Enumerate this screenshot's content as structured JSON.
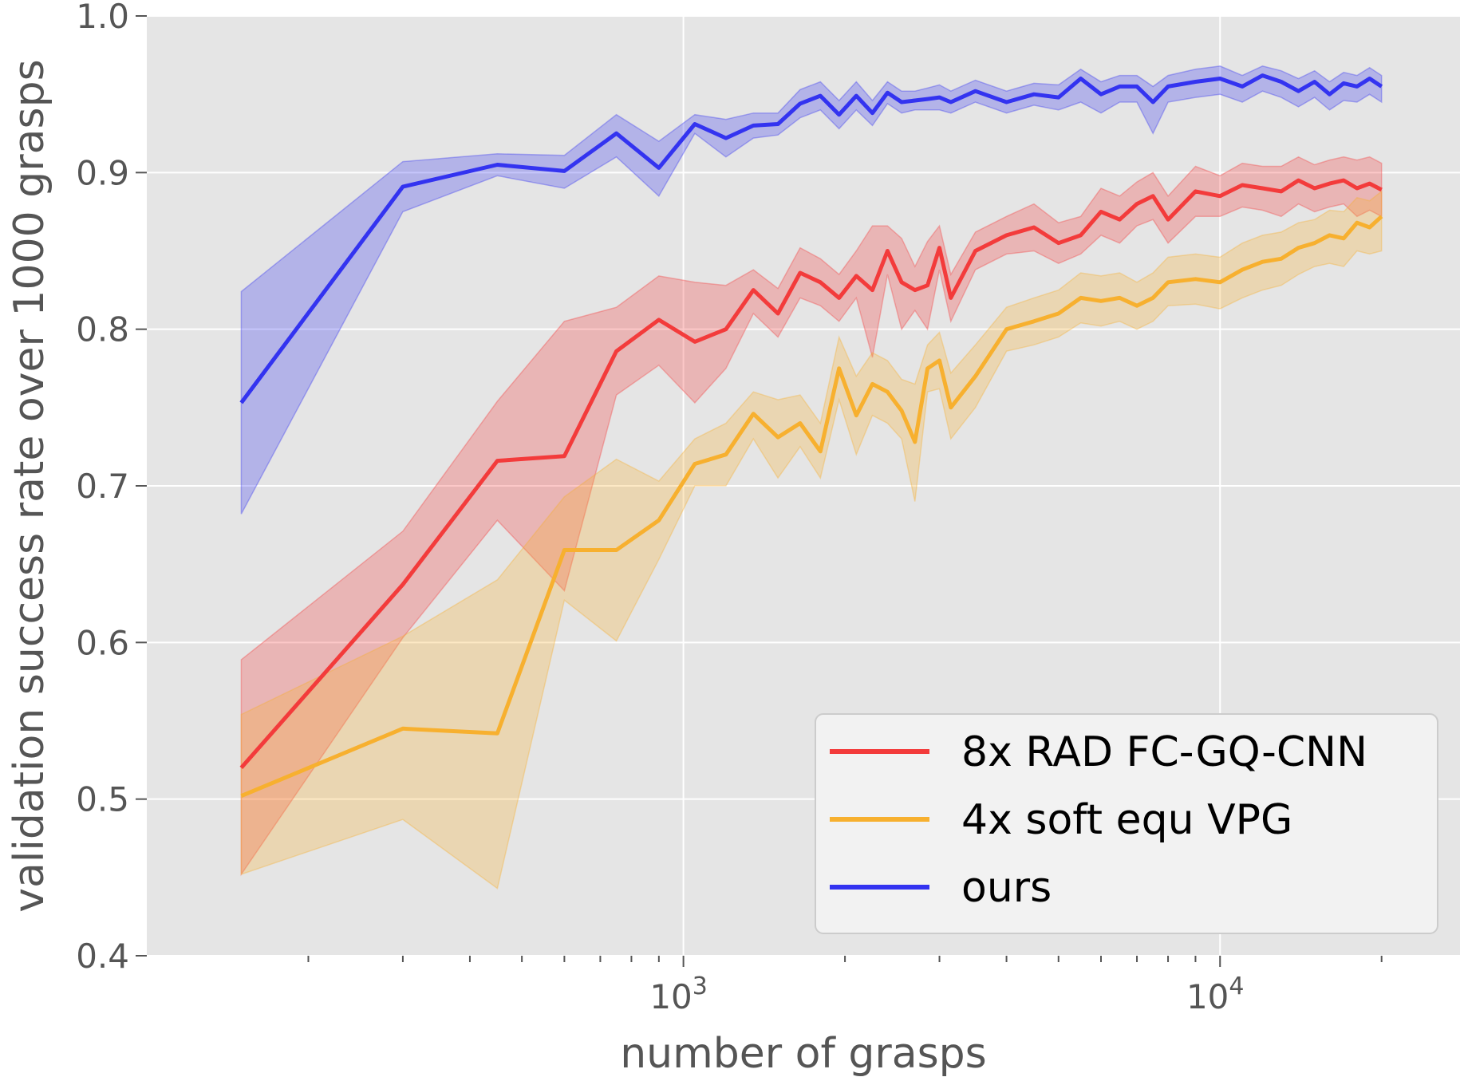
{
  "chart_data": {
    "type": "line",
    "xscale": "log",
    "xlabel": "number of grasps",
    "ylabel": "validation success rate over 1000 grasps",
    "xlim": [
      100,
      28000
    ],
    "ylim": [
      0.4,
      1.0
    ],
    "yticks": [
      {
        "value": 0.4,
        "label": "0.4"
      },
      {
        "value": 0.5,
        "label": "0.5"
      },
      {
        "value": 0.6,
        "label": "0.6"
      },
      {
        "value": 0.7,
        "label": "0.7"
      },
      {
        "value": 0.8,
        "label": "0.8"
      },
      {
        "value": 0.9,
        "label": "0.9"
      },
      {
        "value": 1.0,
        "label": "1.0"
      }
    ],
    "xticks": [
      {
        "value": 1000,
        "base": "10",
        "exp": "3"
      },
      {
        "value": 10000,
        "base": "10",
        "exp": "4"
      }
    ],
    "grid": true,
    "legend_position": "lower-right",
    "colors": {
      "plot_bg": "#e5e5e5",
      "grid": "#ffffff",
      "legend_bg": "#f2f2f2",
      "legend_border": "#cccccc"
    },
    "series": [
      {
        "name": "8x RAD FC-GQ-CNN",
        "color": "#f33b3b",
        "x": [
          150,
          300,
          450,
          600,
          750,
          900,
          1050,
          1200,
          1350,
          1500,
          1650,
          1800,
          1950,
          2100,
          2250,
          2400,
          2550,
          2700,
          2850,
          3000,
          3150,
          3500,
          4000,
          4500,
          5000,
          5500,
          6000,
          6500,
          7000,
          7500,
          8000,
          9000,
          10000,
          11000,
          12000,
          13000,
          14000,
          15000,
          16000,
          17000,
          18000,
          19000,
          20000
        ],
        "y": [
          0.52,
          0.637,
          0.716,
          0.719,
          0.786,
          0.806,
          0.792,
          0.8,
          0.825,
          0.81,
          0.836,
          0.83,
          0.82,
          0.834,
          0.825,
          0.85,
          0.83,
          0.825,
          0.828,
          0.852,
          0.82,
          0.85,
          0.86,
          0.865,
          0.855,
          0.86,
          0.875,
          0.87,
          0.88,
          0.885,
          0.87,
          0.888,
          0.885,
          0.892,
          0.89,
          0.888,
          0.895,
          0.89,
          0.893,
          0.895,
          0.89,
          0.893,
          0.889
        ],
        "lower": [
          0.452,
          0.603,
          0.678,
          0.633,
          0.758,
          0.777,
          0.753,
          0.775,
          0.81,
          0.795,
          0.82,
          0.815,
          0.805,
          0.82,
          0.782,
          0.835,
          0.8,
          0.812,
          0.8,
          0.838,
          0.805,
          0.838,
          0.848,
          0.85,
          0.842,
          0.848,
          0.86,
          0.855,
          0.866,
          0.87,
          0.855,
          0.872,
          0.872,
          0.878,
          0.876,
          0.872,
          0.88,
          0.875,
          0.878,
          0.88,
          0.872,
          0.876,
          0.872
        ],
        "upper": [
          0.589,
          0.671,
          0.754,
          0.805,
          0.814,
          0.834,
          0.83,
          0.828,
          0.838,
          0.826,
          0.852,
          0.845,
          0.835,
          0.85,
          0.866,
          0.866,
          0.858,
          0.84,
          0.856,
          0.866,
          0.835,
          0.862,
          0.872,
          0.88,
          0.868,
          0.872,
          0.89,
          0.885,
          0.894,
          0.9,
          0.885,
          0.904,
          0.898,
          0.906,
          0.904,
          0.904,
          0.91,
          0.905,
          0.908,
          0.91,
          0.908,
          0.91,
          0.906
        ]
      },
      {
        "name": "4x soft equ VPG",
        "color": "#f7b02f",
        "x": [
          150,
          300,
          450,
          600,
          750,
          900,
          1050,
          1200,
          1350,
          1500,
          1650,
          1800,
          1950,
          2100,
          2250,
          2400,
          2550,
          2700,
          2850,
          3000,
          3150,
          3500,
          4000,
          4500,
          5000,
          5500,
          6000,
          6500,
          7000,
          7500,
          8000,
          9000,
          10000,
          11000,
          12000,
          13000,
          14000,
          15000,
          16000,
          17000,
          18000,
          19000,
          20000
        ],
        "y": [
          0.502,
          0.545,
          0.542,
          0.659,
          0.659,
          0.678,
          0.714,
          0.72,
          0.746,
          0.731,
          0.74,
          0.722,
          0.775,
          0.745,
          0.765,
          0.76,
          0.748,
          0.728,
          0.775,
          0.78,
          0.75,
          0.77,
          0.8,
          0.805,
          0.81,
          0.82,
          0.818,
          0.82,
          0.815,
          0.82,
          0.83,
          0.832,
          0.83,
          0.838,
          0.843,
          0.845,
          0.852,
          0.855,
          0.86,
          0.858,
          0.868,
          0.865,
          0.872
        ],
        "lower": [
          0.452,
          0.487,
          0.443,
          0.627,
          0.601,
          0.653,
          0.7,
          0.7,
          0.73,
          0.705,
          0.725,
          0.705,
          0.755,
          0.72,
          0.745,
          0.74,
          0.73,
          0.69,
          0.76,
          0.762,
          0.73,
          0.75,
          0.786,
          0.79,
          0.795,
          0.804,
          0.802,
          0.805,
          0.8,
          0.805,
          0.815,
          0.816,
          0.813,
          0.82,
          0.825,
          0.828,
          0.835,
          0.84,
          0.842,
          0.84,
          0.85,
          0.848,
          0.85
        ],
        "upper": [
          0.554,
          0.604,
          0.64,
          0.693,
          0.717,
          0.703,
          0.73,
          0.74,
          0.76,
          0.755,
          0.758,
          0.74,
          0.795,
          0.77,
          0.785,
          0.78,
          0.768,
          0.765,
          0.79,
          0.798,
          0.772,
          0.79,
          0.814,
          0.82,
          0.825,
          0.836,
          0.834,
          0.836,
          0.83,
          0.836,
          0.846,
          0.848,
          0.846,
          0.855,
          0.86,
          0.862,
          0.868,
          0.87,
          0.876,
          0.875,
          0.884,
          0.882,
          0.888
        ]
      },
      {
        "name": "ours",
        "color": "#3333f0",
        "x": [
          150,
          300,
          450,
          600,
          750,
          900,
          1050,
          1200,
          1350,
          1500,
          1650,
          1800,
          1950,
          2100,
          2250,
          2400,
          2550,
          2700,
          2850,
          3000,
          3150,
          3500,
          4000,
          4500,
          5000,
          5500,
          6000,
          6500,
          7000,
          7500,
          8000,
          9000,
          10000,
          11000,
          12000,
          13000,
          14000,
          15000,
          16000,
          17000,
          18000,
          19000,
          20000
        ],
        "y": [
          0.753,
          0.891,
          0.905,
          0.901,
          0.925,
          0.903,
          0.931,
          0.922,
          0.93,
          0.931,
          0.944,
          0.949,
          0.937,
          0.949,
          0.938,
          0.951,
          0.945,
          0.946,
          0.947,
          0.948,
          0.945,
          0.952,
          0.945,
          0.95,
          0.948,
          0.96,
          0.95,
          0.955,
          0.955,
          0.945,
          0.955,
          0.958,
          0.96,
          0.955,
          0.962,
          0.958,
          0.952,
          0.958,
          0.95,
          0.957,
          0.955,
          0.96,
          0.955
        ],
        "lower": [
          0.682,
          0.875,
          0.898,
          0.89,
          0.91,
          0.885,
          0.925,
          0.91,
          0.922,
          0.924,
          0.935,
          0.94,
          0.928,
          0.94,
          0.93,
          0.944,
          0.938,
          0.94,
          0.94,
          0.94,
          0.938,
          0.945,
          0.938,
          0.943,
          0.94,
          0.945,
          0.938,
          0.945,
          0.945,
          0.925,
          0.945,
          0.948,
          0.95,
          0.945,
          0.952,
          0.948,
          0.942,
          0.948,
          0.94,
          0.946,
          0.945,
          0.95,
          0.945
        ],
        "upper": [
          0.824,
          0.907,
          0.912,
          0.911,
          0.937,
          0.92,
          0.937,
          0.934,
          0.938,
          0.938,
          0.953,
          0.958,
          0.946,
          0.958,
          0.946,
          0.958,
          0.952,
          0.952,
          0.954,
          0.956,
          0.952,
          0.959,
          0.952,
          0.957,
          0.956,
          0.966,
          0.958,
          0.962,
          0.962,
          0.955,
          0.962,
          0.966,
          0.968,
          0.962,
          0.968,
          0.965,
          0.96,
          0.965,
          0.958,
          0.964,
          0.962,
          0.967,
          0.962
        ]
      }
    ]
  }
}
